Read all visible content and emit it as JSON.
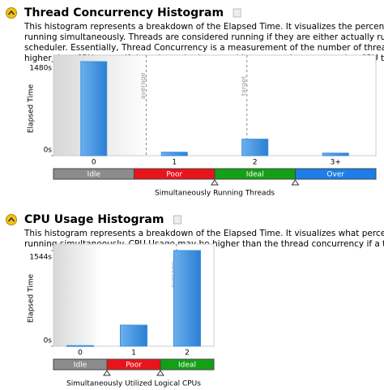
{
  "chart_data": [
    {
      "type": "bar",
      "title": "Thread Concurrency Histogram",
      "subtitle": [
        "This histogram represents a breakdown of the Elapsed Time. It visualizes the percentage of the wall tim",
        "running simultaneously. Threads are considered running if they are either actually running on a CPU o",
        "scheduler. Essentially, Thread Concurrency is a measurement of the number of threads that were not",
        "higher than CPU usage if threads are in the runnable state and not consuming CPU time."
      ],
      "y_label": "Elapsed Time",
      "x_label": "Simultaneously Running Threads",
      "categories": [
        "0",
        "1",
        "2",
        "3+"
      ],
      "values": [
        1480,
        55,
        260,
        40
      ],
      "color": "#3b8fdf",
      "ylim": [
        0,
        1480
      ],
      "yticks": [
        {
          "value": 0,
          "label": "0s"
        },
        {
          "value": 1480,
          "label": "1480s"
        }
      ],
      "annotations": [
        {
          "text": "average",
          "x": 0.65
        },
        {
          "text": "target",
          "x": 1.9
        }
      ],
      "bands": [
        {
          "label": "Idle",
          "color": "#8c8c8c"
        },
        {
          "label": "Poor",
          "color": "#e8141c"
        },
        {
          "label": "Ideal",
          "color": "#14a014"
        },
        {
          "label": "Over",
          "color": "#1c7ee6"
        }
      ]
    },
    {
      "type": "bar",
      "title": "CPU Usage Histogram",
      "subtitle": [
        "This histogram represents a breakdown of the Elapsed Time. It visualizes what percentage of the wall t",
        "running simultaneously. CPU Usage may be higher than the thread concurrency if a thread is executin"
      ],
      "y_label": "Elapsed Time",
      "x_label": "Simultaneously Utilized Logical CPUs",
      "categories": [
        "0",
        "1",
        "2"
      ],
      "values": [
        10,
        340,
        1544
      ],
      "color": "#3b8fdf",
      "ylim": [
        0,
        1544
      ],
      "yticks": [
        {
          "value": 0,
          "label": "0s"
        },
        {
          "value": 1544,
          "label": "1544s"
        }
      ],
      "annotations": [
        {
          "text": "average",
          "x": 1.8
        }
      ],
      "bands": [
        {
          "label": "Idle",
          "color": "#8c8c8c"
        },
        {
          "label": "Poor",
          "color": "#e8141c"
        },
        {
          "label": "Ideal",
          "color": "#14a014"
        }
      ]
    }
  ]
}
